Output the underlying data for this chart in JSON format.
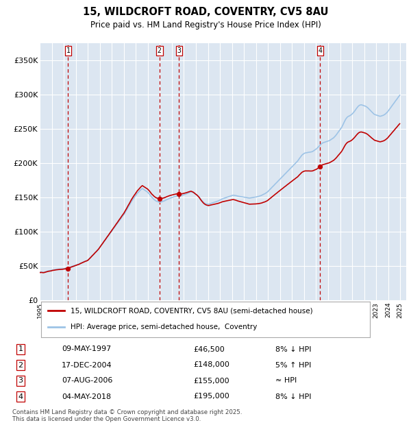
{
  "title_line1": "15, WILDCROFT ROAD, COVENTRY, CV5 8AU",
  "title_line2": "Price paid vs. HM Land Registry's House Price Index (HPI)",
  "background_color": "#dce6f1",
  "grid_color": "#ffffff",
  "hpi_color": "#9dc3e6",
  "price_color": "#c00000",
  "ylim": [
    0,
    375000
  ],
  "yticks": [
    0,
    50000,
    100000,
    150000,
    200000,
    250000,
    300000,
    350000
  ],
  "ytick_labels": [
    "£0",
    "£50K",
    "£100K",
    "£150K",
    "£200K",
    "£250K",
    "£300K",
    "£350K"
  ],
  "sale_dates_num": [
    1997.36,
    2004.96,
    2006.6,
    2018.34
  ],
  "sale_prices": [
    46500,
    148000,
    155000,
    195000
  ],
  "sale_labels": [
    "1",
    "2",
    "3",
    "4"
  ],
  "vline_color": "#c00000",
  "legend_label_price": "15, WILDCROFT ROAD, COVENTRY, CV5 8AU (semi-detached house)",
  "legend_label_hpi": "HPI: Average price, semi-detached house,  Coventry",
  "table_rows": [
    [
      "1",
      "09-MAY-1997",
      "£46,500",
      "8% ↓ HPI"
    ],
    [
      "2",
      "17-DEC-2004",
      "£148,000",
      "5% ↑ HPI"
    ],
    [
      "3",
      "07-AUG-2006",
      "£155,000",
      "≈ HPI"
    ],
    [
      "4",
      "04-MAY-2018",
      "£195,000",
      "8% ↓ HPI"
    ]
  ],
  "footnote": "Contains HM Land Registry data © Crown copyright and database right 2025.\nThis data is licensed under the Open Government Licence v3.0.",
  "hpi_years": [
    1995.04,
    1995.12,
    1995.21,
    1995.29,
    1995.37,
    1995.46,
    1995.54,
    1995.62,
    1995.71,
    1995.79,
    1995.87,
    1995.96,
    1996.04,
    1996.12,
    1996.21,
    1996.29,
    1996.37,
    1996.46,
    1996.54,
    1996.62,
    1996.71,
    1996.79,
    1996.87,
    1996.96,
    1997.04,
    1997.12,
    1997.21,
    1997.29,
    1997.37,
    1997.46,
    1997.54,
    1997.62,
    1997.71,
    1997.79,
    1997.87,
    1997.96,
    1998.04,
    1998.12,
    1998.21,
    1998.29,
    1998.37,
    1998.46,
    1998.54,
    1998.62,
    1998.71,
    1998.79,
    1998.87,
    1998.96,
    1999.04,
    1999.12,
    1999.21,
    1999.29,
    1999.37,
    1999.46,
    1999.54,
    1999.62,
    1999.71,
    1999.79,
    1999.87,
    1999.96,
    2000.04,
    2000.12,
    2000.21,
    2000.29,
    2000.37,
    2000.46,
    2000.54,
    2000.62,
    2000.71,
    2000.79,
    2000.87,
    2000.96,
    2001.04,
    2001.12,
    2001.21,
    2001.29,
    2001.37,
    2001.46,
    2001.54,
    2001.62,
    2001.71,
    2001.79,
    2001.87,
    2001.96,
    2002.04,
    2002.12,
    2002.21,
    2002.29,
    2002.37,
    2002.46,
    2002.54,
    2002.62,
    2002.71,
    2002.79,
    2002.87,
    2002.96,
    2003.04,
    2003.12,
    2003.21,
    2003.29,
    2003.37,
    2003.46,
    2003.54,
    2003.62,
    2003.71,
    2003.79,
    2003.87,
    2003.96,
    2004.04,
    2004.12,
    2004.21,
    2004.29,
    2004.37,
    2004.46,
    2004.54,
    2004.62,
    2004.71,
    2004.79,
    2004.87,
    2004.96,
    2005.04,
    2005.12,
    2005.21,
    2005.29,
    2005.37,
    2005.46,
    2005.54,
    2005.62,
    2005.71,
    2005.79,
    2005.87,
    2005.96,
    2006.04,
    2006.12,
    2006.21,
    2006.29,
    2006.37,
    2006.46,
    2006.54,
    2006.62,
    2006.71,
    2006.79,
    2006.87,
    2006.96,
    2007.04,
    2007.12,
    2007.21,
    2007.29,
    2007.37,
    2007.46,
    2007.54,
    2007.62,
    2007.71,
    2007.79,
    2007.87,
    2007.96,
    2008.04,
    2008.12,
    2008.21,
    2008.29,
    2008.37,
    2008.46,
    2008.54,
    2008.62,
    2008.71,
    2008.79,
    2008.87,
    2008.96,
    2009.04,
    2009.12,
    2009.21,
    2009.29,
    2009.37,
    2009.46,
    2009.54,
    2009.62,
    2009.71,
    2009.79,
    2009.87,
    2009.96,
    2010.04,
    2010.12,
    2010.21,
    2010.29,
    2010.37,
    2010.46,
    2010.54,
    2010.62,
    2010.71,
    2010.79,
    2010.87,
    2010.96,
    2011.04,
    2011.12,
    2011.21,
    2011.29,
    2011.37,
    2011.46,
    2011.54,
    2011.62,
    2011.71,
    2011.79,
    2011.87,
    2011.96,
    2012.04,
    2012.12,
    2012.21,
    2012.29,
    2012.37,
    2012.46,
    2012.54,
    2012.62,
    2012.71,
    2012.79,
    2012.87,
    2012.96,
    2013.04,
    2013.12,
    2013.21,
    2013.29,
    2013.37,
    2013.46,
    2013.54,
    2013.62,
    2013.71,
    2013.79,
    2013.87,
    2013.96,
    2014.04,
    2014.12,
    2014.21,
    2014.29,
    2014.37,
    2014.46,
    2014.54,
    2014.62,
    2014.71,
    2014.79,
    2014.87,
    2014.96,
    2015.04,
    2015.12,
    2015.21,
    2015.29,
    2015.37,
    2015.46,
    2015.54,
    2015.62,
    2015.71,
    2015.79,
    2015.87,
    2015.96,
    2016.04,
    2016.12,
    2016.21,
    2016.29,
    2016.37,
    2016.46,
    2016.54,
    2016.62,
    2016.71,
    2016.79,
    2016.87,
    2016.96,
    2017.04,
    2017.12,
    2017.21,
    2017.29,
    2017.37,
    2017.46,
    2017.54,
    2017.62,
    2017.71,
    2017.79,
    2017.87,
    2017.96,
    2018.04,
    2018.12,
    2018.21,
    2018.29,
    2018.37,
    2018.46,
    2018.54,
    2018.62,
    2018.71,
    2018.79,
    2018.87,
    2018.96,
    2019.04,
    2019.12,
    2019.21,
    2019.29,
    2019.37,
    2019.46,
    2019.54,
    2019.62,
    2019.71,
    2019.79,
    2019.87,
    2019.96,
    2020.04,
    2020.12,
    2020.21,
    2020.29,
    2020.37,
    2020.46,
    2020.54,
    2020.62,
    2020.71,
    2020.79,
    2020.87,
    2020.96,
    2021.04,
    2021.12,
    2021.21,
    2021.29,
    2021.37,
    2021.46,
    2021.54,
    2021.62,
    2021.71,
    2021.79,
    2021.87,
    2021.96,
    2022.04,
    2022.12,
    2022.21,
    2022.29,
    2022.37,
    2022.46,
    2022.54,
    2022.62,
    2022.71,
    2022.79,
    2022.87,
    2022.96,
    2023.04,
    2023.12,
    2023.21,
    2023.29,
    2023.37,
    2023.46,
    2023.54,
    2023.62,
    2023.71,
    2023.79,
    2023.87,
    2023.96,
    2024.04,
    2024.12,
    2024.21,
    2024.29,
    2024.37,
    2024.46,
    2024.54,
    2024.62,
    2024.71,
    2024.79,
    2024.87,
    2024.96
  ],
  "hpi_values": [
    41000,
    41200,
    41000,
    40800,
    41000,
    41500,
    42000,
    42500,
    42800,
    43000,
    43200,
    43500,
    44000,
    44200,
    44500,
    44800,
    45000,
    45200,
    45400,
    45500,
    45600,
    45700,
    45800,
    46000,
    46200,
    46500,
    46800,
    47000,
    47200,
    47800,
    48500,
    49000,
    49500,
    50000,
    50500,
    51000,
    51500,
    52000,
    52500,
    53000,
    53800,
    54500,
    55000,
    55800,
    56500,
    57000,
    57500,
    58000,
    59000,
    60500,
    62000,
    63500,
    65000,
    66500,
    68000,
    69500,
    71000,
    72500,
    74000,
    76000,
    78000,
    80000,
    82000,
    84000,
    86000,
    88000,
    90000,
    92000,
    94000,
    96000,
    98000,
    100000,
    102000,
    104000,
    106000,
    108000,
    110000,
    112000,
    114000,
    116000,
    118000,
    120000,
    122000,
    124000,
    126000,
    128500,
    131000,
    133500,
    136000,
    138500,
    141000,
    143500,
    146000,
    148000,
    150000,
    152000,
    154000,
    156000,
    157500,
    159000,
    160500,
    162000,
    163000,
    162000,
    161000,
    160000,
    159000,
    158000,
    156500,
    155000,
    153000,
    151000,
    149500,
    148000,
    146500,
    145500,
    144500,
    144000,
    143500,
    143000,
    143200,
    143500,
    144000,
    144500,
    145000,
    145800,
    146500,
    147200,
    147800,
    148500,
    149000,
    149500,
    150000,
    150500,
    151000,
    151500,
    151800,
    152000,
    152200,
    152000,
    152200,
    152500,
    153000,
    153500,
    154000,
    154500,
    155200,
    155800,
    156500,
    157200,
    157800,
    158000,
    157500,
    157000,
    156000,
    155000,
    154000,
    153000,
    151500,
    150000,
    148000,
    146000,
    144500,
    143000,
    141800,
    141000,
    140500,
    140200,
    140000,
    140500,
    141000,
    141500,
    142000,
    142500,
    143000,
    143500,
    144000,
    144500,
    145000,
    145800,
    146500,
    147200,
    148000,
    148500,
    149000,
    149500,
    150000,
    150500,
    151000,
    151500,
    152000,
    152500,
    153000,
    153200,
    153000,
    152800,
    152500,
    152000,
    151800,
    151500,
    151200,
    151000,
    150800,
    150500,
    150200,
    150000,
    149800,
    149500,
    149200,
    149000,
    149200,
    149500,
    149800,
    150000,
    150200,
    150500,
    150800,
    151000,
    151500,
    152000,
    152500,
    153000,
    153800,
    154500,
    155200,
    156000,
    157000,
    158000,
    159500,
    161000,
    162500,
    164000,
    165500,
    167000,
    168500,
    170000,
    171500,
    173000,
    174500,
    176000,
    177500,
    179000,
    180500,
    182000,
    183500,
    185000,
    186500,
    188000,
    189500,
    191000,
    192500,
    194000,
    195500,
    197000,
    198500,
    200000,
    201500,
    203000,
    205000,
    207000,
    209000,
    211000,
    212500,
    213500,
    214500,
    215000,
    215200,
    215500,
    215800,
    216000,
    216200,
    216500,
    217000,
    218000,
    219000,
    220000,
    221000,
    222500,
    224000,
    225500,
    227000,
    228500,
    229500,
    230000,
    230500,
    231000,
    231500,
    232000,
    232500,
    233000,
    234000,
    235000,
    236000,
    237000,
    238500,
    240000,
    242000,
    244000,
    246000,
    248000,
    250000,
    252000,
    255000,
    258000,
    261000,
    264000,
    266000,
    267500,
    268500,
    269000,
    270000,
    271000,
    272500,
    274000,
    276000,
    278000,
    280000,
    282000,
    283500,
    284500,
    285000,
    285000,
    284500,
    284000,
    283500,
    283000,
    282000,
    281000,
    279500,
    278000,
    276500,
    275000,
    273500,
    272000,
    271000,
    270500,
    270000,
    269500,
    269000,
    268500,
    268500,
    269000,
    269500,
    270000,
    271000,
    272000,
    273500,
    275000,
    277000,
    279000,
    281000,
    283000,
    285000,
    287000,
    289000,
    291000,
    293000,
    295000,
    297000,
    299000
  ]
}
